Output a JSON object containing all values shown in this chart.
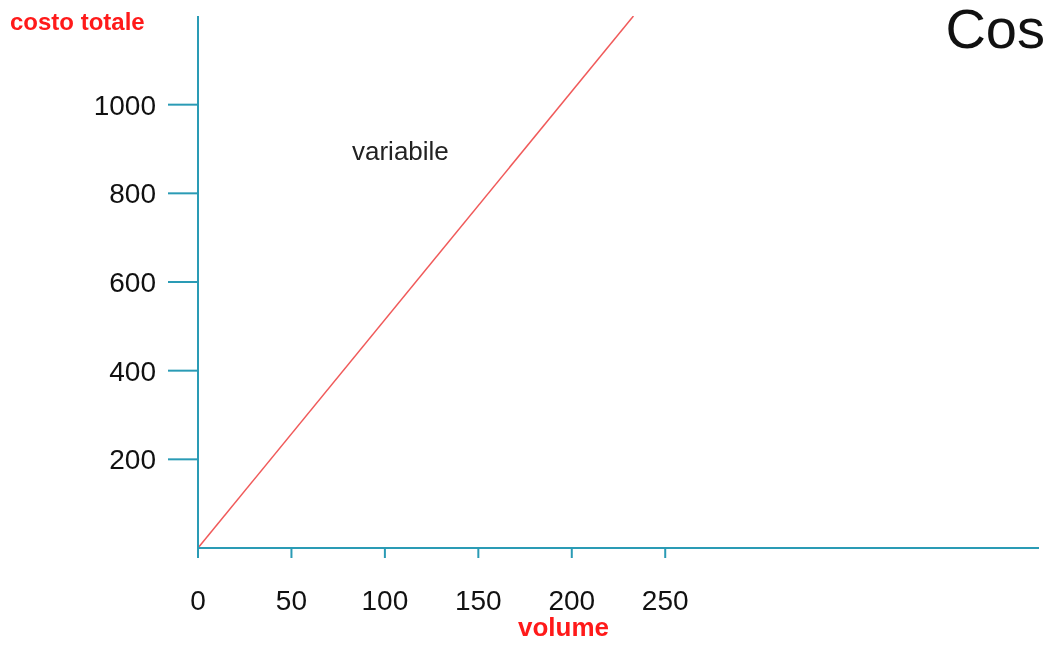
{
  "chart_data": {
    "type": "line",
    "title": "Cos",
    "xlabel": "volume",
    "ylabel": "costo totale",
    "x": [
      0,
      233
    ],
    "series": [
      {
        "color": "#f05a5a",
        "values": [
          0,
          1200
        ]
      }
    ],
    "annotations": [
      "variabile"
    ],
    "xlim": [
      0,
      450
    ],
    "ylim": [
      0,
      1200
    ],
    "xticks": [
      0,
      50,
      100,
      150,
      200,
      250
    ],
    "yticks": [
      200,
      400,
      600,
      800,
      1000
    ],
    "grid": false,
    "legend": false,
    "marker": "none",
    "line_style": "solid"
  }
}
